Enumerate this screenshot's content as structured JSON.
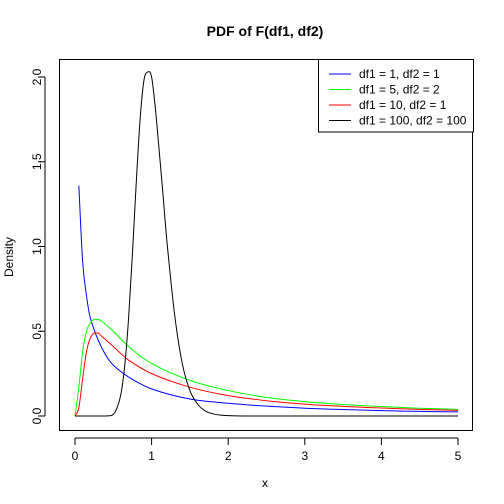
{
  "chart_data": {
    "type": "line",
    "title": "PDF of F(df1, df2)",
    "xlabel": "x",
    "ylabel": "Density",
    "xlim": [
      0,
      5
    ],
    "ylim": [
      0,
      2.0
    ],
    "x_ticks": [
      0,
      1,
      2,
      3,
      4,
      5
    ],
    "x_tick_labels": [
      "0",
      "1",
      "2",
      "3",
      "4",
      "5"
    ],
    "y_ticks": [
      0.0,
      0.5,
      1.0,
      1.5,
      2.0
    ],
    "y_tick_labels": [
      "0.0",
      "0.5",
      "1.0",
      "1.5",
      "2.0"
    ],
    "grid": false,
    "legend_position": "top-right",
    "series": [
      {
        "name": "df1 = 1, df2 = 1",
        "color": "#0000FF",
        "x": [
          0.05,
          0.1,
          0.15,
          0.2,
          0.3,
          0.4,
          0.5,
          0.7,
          1.0,
          1.5,
          2.0,
          2.5,
          3.0,
          3.5,
          4.0,
          4.5,
          5.0
        ],
        "y": [
          1.36,
          0.91,
          0.71,
          0.58,
          0.45,
          0.36,
          0.3,
          0.23,
          0.16,
          0.1,
          0.075,
          0.058,
          0.046,
          0.038,
          0.032,
          0.027,
          0.024
        ]
      },
      {
        "name": "df1 = 5, df2 = 2",
        "color": "#00FF00",
        "x": [
          0.0,
          0.05,
          0.1,
          0.15,
          0.2,
          0.25,
          0.3,
          0.35,
          0.4,
          0.5,
          0.7,
          1.0,
          1.5,
          2.0,
          2.5,
          3.0,
          3.5,
          4.0,
          4.5,
          5.0
        ],
        "y": [
          0.0,
          0.17,
          0.38,
          0.5,
          0.55,
          0.57,
          0.57,
          0.56,
          0.54,
          0.5,
          0.41,
          0.31,
          0.21,
          0.15,
          0.11,
          0.085,
          0.068,
          0.056,
          0.046,
          0.039
        ]
      },
      {
        "name": "df1 = 10, df2 = 1",
        "color": "#FF0000",
        "x": [
          0.0,
          0.05,
          0.1,
          0.15,
          0.2,
          0.25,
          0.3,
          0.35,
          0.4,
          0.5,
          0.7,
          1.0,
          1.5,
          2.0,
          2.5,
          3.0,
          3.5,
          4.0,
          4.5,
          5.0
        ],
        "y": [
          0.0,
          0.05,
          0.22,
          0.38,
          0.46,
          0.49,
          0.49,
          0.47,
          0.45,
          0.41,
          0.33,
          0.25,
          0.17,
          0.12,
          0.09,
          0.07,
          0.057,
          0.047,
          0.039,
          0.033
        ]
      },
      {
        "name": "df1 = 100, df2 = 100",
        "color": "#000000",
        "x": [
          0.0,
          0.4,
          0.5,
          0.55,
          0.6,
          0.65,
          0.7,
          0.75,
          0.8,
          0.85,
          0.9,
          0.95,
          1.0,
          1.05,
          1.1,
          1.15,
          1.2,
          1.3,
          1.4,
          1.5,
          1.6,
          1.7,
          1.8,
          1.9,
          2.0,
          2.2,
          2.5,
          3.0,
          4.0,
          5.0
        ],
        "y": [
          0.0,
          0.0,
          0.01,
          0.05,
          0.13,
          0.3,
          0.58,
          0.96,
          1.38,
          1.75,
          1.98,
          2.03,
          2.0,
          1.81,
          1.56,
          1.3,
          1.03,
          0.6,
          0.31,
          0.15,
          0.07,
          0.03,
          0.013,
          0.005,
          0.002,
          0.0,
          0.0,
          0.0,
          0.0,
          0.0
        ]
      }
    ]
  }
}
